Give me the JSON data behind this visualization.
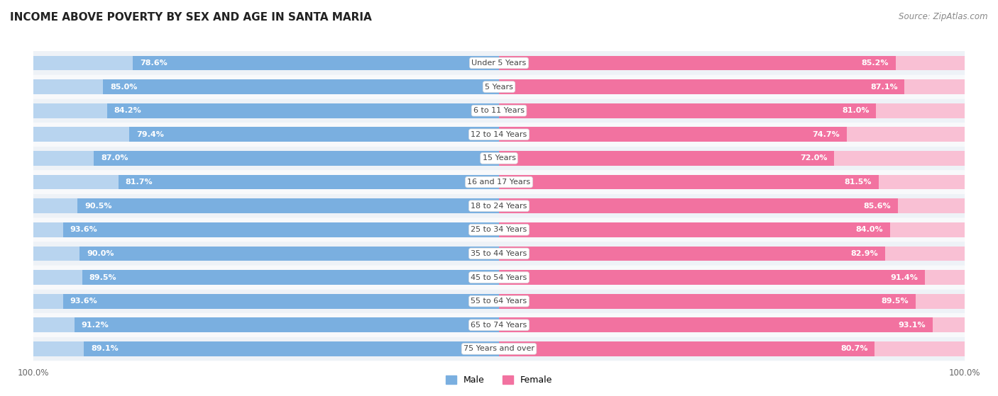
{
  "title": "INCOME ABOVE POVERTY BY SEX AND AGE IN SANTA MARIA",
  "source": "Source: ZipAtlas.com",
  "categories": [
    "Under 5 Years",
    "5 Years",
    "6 to 11 Years",
    "12 to 14 Years",
    "15 Years",
    "16 and 17 Years",
    "18 to 24 Years",
    "25 to 34 Years",
    "35 to 44 Years",
    "45 to 54 Years",
    "55 to 64 Years",
    "65 to 74 Years",
    "75 Years and over"
  ],
  "male_values": [
    78.6,
    85.0,
    84.2,
    79.4,
    87.0,
    81.7,
    90.5,
    93.6,
    90.0,
    89.5,
    93.6,
    91.2,
    89.1
  ],
  "female_values": [
    85.2,
    87.1,
    81.0,
    74.7,
    72.0,
    81.5,
    85.6,
    84.0,
    82.9,
    91.4,
    89.5,
    93.1,
    80.7
  ],
  "male_color": "#7aafe0",
  "female_color": "#f272a0",
  "male_color_light": "#b8d4ef",
  "female_color_light": "#f9c0d4",
  "male_label": "Male",
  "female_label": "Female",
  "axis_max": 100.0,
  "background_color": "#ffffff",
  "row_bg_light": "#eef2f7",
  "row_bg_white": "#f8f9fb",
  "title_fontsize": 11,
  "label_fontsize": 8.5,
  "value_fontsize": 8,
  "source_fontsize": 8.5,
  "cat_fontsize": 8
}
